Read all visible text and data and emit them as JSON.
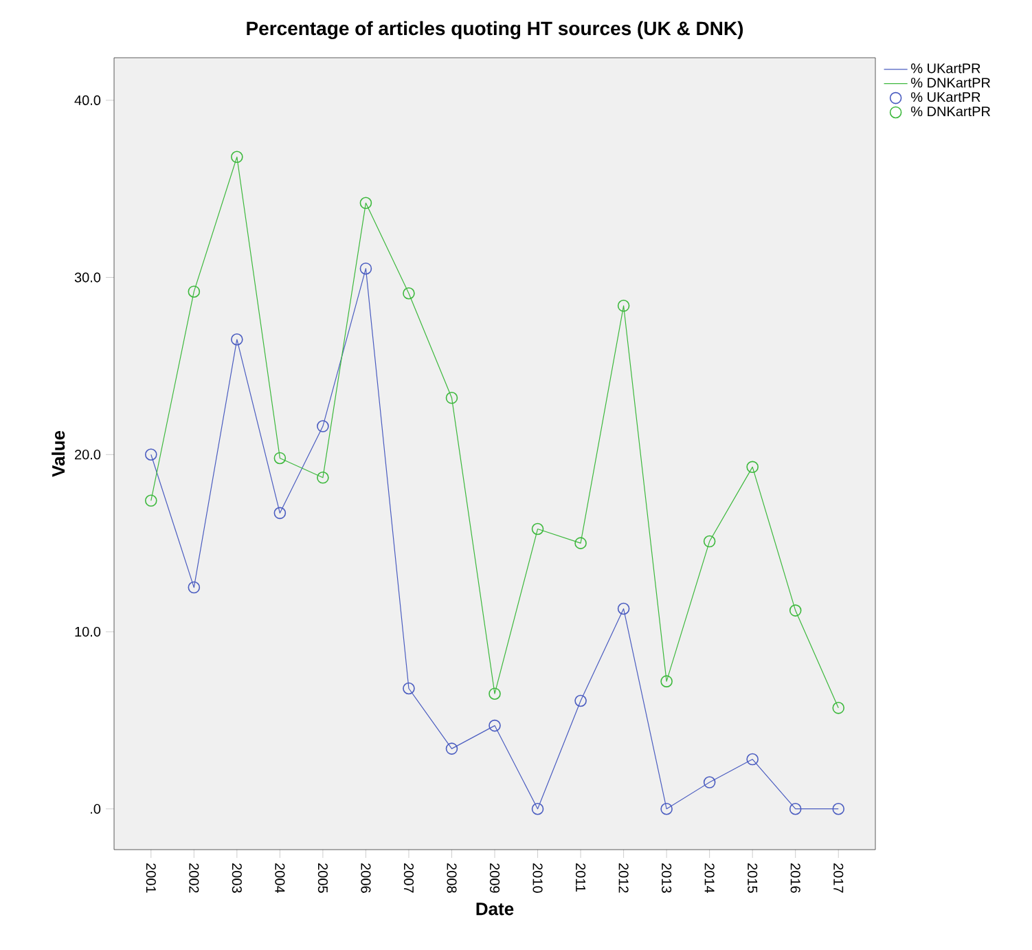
{
  "chart_data": {
    "type": "line",
    "title": "Percentage of articles quoting HT sources (UK & DNK)",
    "xlabel": "Date",
    "ylabel": "Value",
    "categories": [
      "2001",
      "2002",
      "2003",
      "2004",
      "2005",
      "2006",
      "2007",
      "2008",
      "2009",
      "2010",
      "2011",
      "2012",
      "2013",
      "2014",
      "2015",
      "2016",
      "2017"
    ],
    "series": [
      {
        "name": "% UKartPR",
        "color": "#4a5cc0",
        "values": [
          20.0,
          12.5,
          26.5,
          16.7,
          21.6,
          30.5,
          6.8,
          3.4,
          4.7,
          0,
          6.1,
          11.3,
          0,
          1.5,
          2.8,
          0,
          0
        ]
      },
      {
        "name": "% DNKartPR",
        "color": "#3cb83c",
        "values": [
          17.4,
          29.2,
          36.8,
          19.8,
          18.7,
          34.2,
          29.1,
          23.2,
          6.5,
          15.8,
          15.0,
          28.4,
          7.2,
          15.1,
          19.3,
          11.2,
          5.7
        ]
      }
    ],
    "ylim": [
      -2.3,
      42.4
    ],
    "yticks": [
      {
        "value": 0,
        "label": ".0"
      },
      {
        "value": 10,
        "label": "10.0"
      },
      {
        "value": 20,
        "label": "20.0"
      },
      {
        "value": 30,
        "label": "30.0"
      },
      {
        "value": 40,
        "label": "40.0"
      }
    ],
    "marker": "circle",
    "legend": "top right",
    "grid": false
  }
}
